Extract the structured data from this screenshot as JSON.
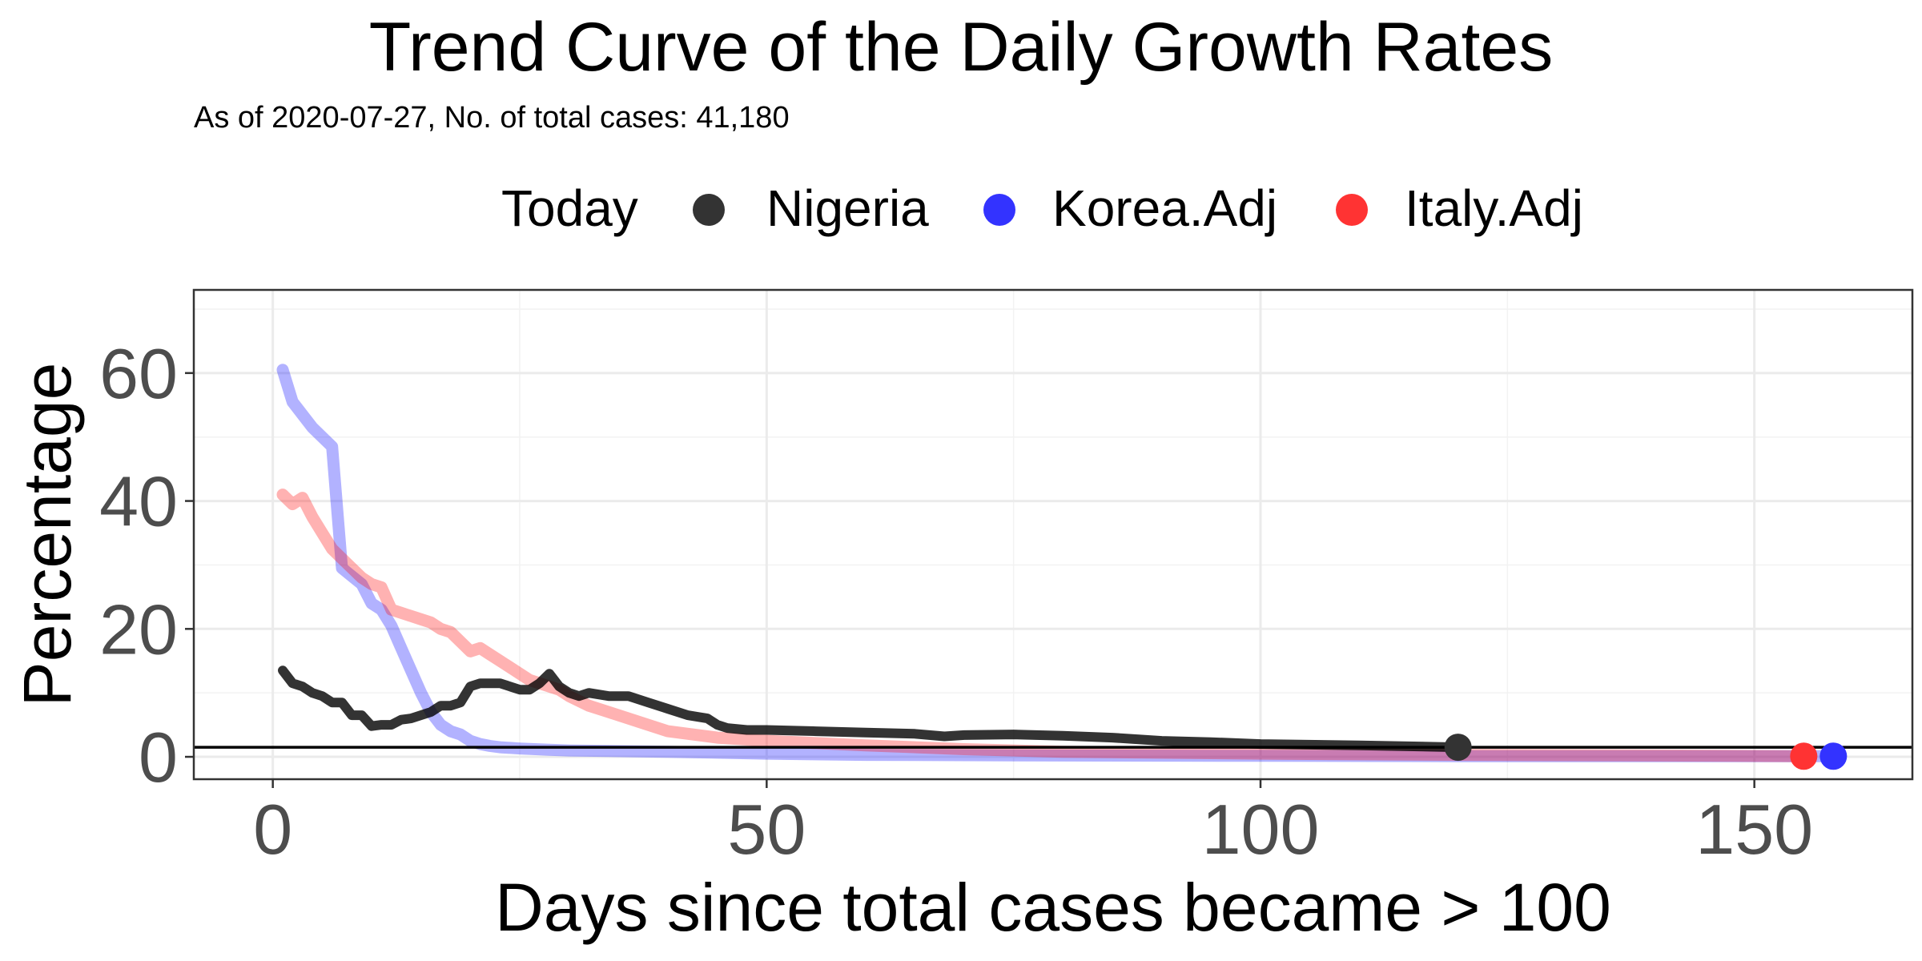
{
  "chart_data": {
    "type": "line",
    "title": "Trend Curve of the Daily Growth Rates",
    "subtitle": "As of 2020-07-27, No. of total cases: 41,180",
    "xlabel": "Days since total cases became > 100",
    "ylabel": "Percentage",
    "xlim": [
      -8,
      166
    ],
    "ylim": [
      -3.5,
      73
    ],
    "xticks": [
      0,
      50,
      100,
      150
    ],
    "yticks": [
      0,
      20,
      40,
      60
    ],
    "grid": true,
    "legend_position": "top",
    "legend_title": "Today",
    "hline": 1.5,
    "series": [
      {
        "name": "Korea.Adj",
        "color": "#0000FF",
        "x": [
          1,
          2,
          4,
          6,
          7,
          9,
          10,
          11,
          12,
          13,
          14,
          15,
          16,
          17,
          18,
          19,
          20,
          21,
          22,
          23,
          25,
          28,
          30,
          40,
          50,
          60,
          80,
          100,
          120,
          140,
          158
        ],
        "values": [
          60.5,
          55.5,
          51.5,
          48.5,
          29.5,
          27,
          24,
          23,
          20.5,
          17,
          13.5,
          10,
          7,
          5,
          4,
          3.5,
          2.5,
          2.0,
          1.7,
          1.5,
          1.3,
          1.1,
          1.0,
          0.8,
          0.5,
          0.3,
          0.2,
          0.15,
          0.1,
          0.1,
          0.1
        ]
      },
      {
        "name": "Italy.Adj",
        "color": "#FF0000",
        "x": [
          1,
          2,
          3,
          4,
          5,
          6,
          7,
          8,
          9,
          10,
          11,
          12,
          13,
          14,
          15,
          16,
          17,
          18,
          19,
          20,
          21,
          22,
          23,
          24,
          25,
          26,
          27,
          28,
          29,
          30,
          32,
          34,
          36,
          38,
          40,
          45,
          50,
          60,
          70,
          80,
          100,
          120,
          140,
          155
        ],
        "values": [
          41,
          39.5,
          40.5,
          37.5,
          35,
          32.5,
          31,
          29.5,
          28,
          27,
          26.5,
          23,
          22.5,
          22,
          21.5,
          21,
          20,
          19.5,
          18,
          16.5,
          17,
          16,
          15,
          14,
          13,
          12,
          11.5,
          11,
          10.5,
          9.5,
          8,
          7,
          6,
          5,
          4,
          3,
          2.5,
          1.8,
          1.2,
          0.8,
          0.5,
          0.3,
          0.2,
          0.1
        ]
      },
      {
        "name": "Nigeria",
        "color": "#000000",
        "x": [
          1,
          2,
          3,
          4,
          5,
          6,
          7,
          8,
          9,
          10,
          11,
          12,
          13,
          14,
          15,
          16,
          17,
          18,
          19,
          20,
          21,
          22,
          23,
          24,
          25,
          26,
          27,
          28,
          29,
          30,
          31,
          32,
          34,
          36,
          38,
          40,
          42,
          44,
          45,
          46,
          48,
          50,
          55,
          60,
          65,
          68,
          70,
          75,
          80,
          85,
          90,
          95,
          100,
          110,
          120
        ],
        "values": [
          13.5,
          11.5,
          11,
          10,
          9.5,
          8.5,
          8.5,
          6.5,
          6.5,
          4.8,
          5,
          5,
          5.8,
          6,
          6.5,
          7,
          8,
          8,
          8.5,
          11,
          11.5,
          11.5,
          11.5,
          11,
          10.5,
          10.5,
          11.5,
          13,
          11,
          10,
          9.5,
          10,
          9.5,
          9.5,
          8.5,
          7.5,
          6.5,
          6,
          5,
          4.5,
          4.2,
          4.2,
          4,
          3.8,
          3.6,
          3.2,
          3.4,
          3.5,
          3.3,
          3,
          2.5,
          2.3,
          2,
          1.8,
          1.5
        ]
      }
    ],
    "legend": [
      {
        "name": "Nigeria",
        "color": "#333333"
      },
      {
        "name": "Korea.Adj",
        "color": "#3333FF"
      },
      {
        "name": "Italy.Adj",
        "color": "#FF3333"
      }
    ],
    "today_points": [
      {
        "series": "Nigeria",
        "x": 120,
        "y": 1.5,
        "color": "#333333"
      },
      {
        "series": "Korea.Adj",
        "x": 158,
        "y": 0.1,
        "color": "#3333FF"
      },
      {
        "series": "Italy.Adj",
        "x": 155,
        "y": 0.1,
        "color": "#FF3333"
      }
    ]
  }
}
